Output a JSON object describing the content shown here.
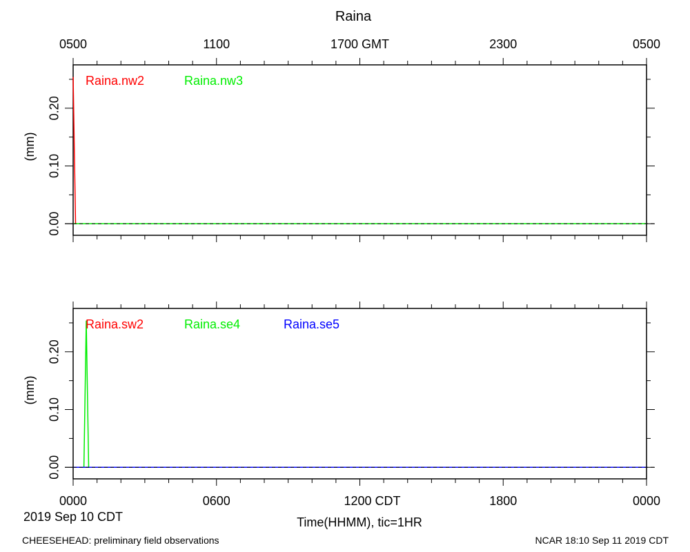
{
  "title": "Raina",
  "top_axis": {
    "tick_labels": [
      "0500",
      "1100",
      "1700 GMT",
      "2300",
      "0500"
    ]
  },
  "bottom_axis": {
    "tick_labels": [
      "0000",
      "0600",
      "1200 CDT",
      "1800",
      "0000"
    ],
    "date_label": "2019 Sep 10 CDT",
    "xlabel": "Time(HHMM), tic=1HR"
  },
  "footer": {
    "left": "CHEESEHEAD: preliminary field observations",
    "right": "NCAR 18:10 Sep 11 2019 CDT"
  },
  "colors": {
    "red": "#ff0000",
    "green": "#00ee00",
    "blue": "#0000ff",
    "zero_line": "#000000"
  },
  "chart_data": [
    {
      "type": "line",
      "ylabel": "(mm)",
      "ytick_labels": [
        "0.00",
        "0.10",
        "0.20"
      ],
      "yticks": [
        0.0,
        0.1,
        0.2
      ],
      "xlim_hours_cdt": [
        0,
        24
      ],
      "ylim": [
        -0.02,
        0.275
      ],
      "grid": false,
      "legend_placement": "top-left inside plot",
      "series": [
        {
          "name": "Raina.nw2",
          "color": "#ff0000",
          "x": [
            0.0,
            0.1,
            0.15,
            24.0
          ],
          "y": [
            0.254,
            0.0,
            0.0,
            0.0
          ]
        },
        {
          "name": "Raina.nw3",
          "color": "#00ee00",
          "x": [
            0.0,
            24.0
          ],
          "y": [
            0.0,
            0.0
          ]
        }
      ]
    },
    {
      "type": "line",
      "ylabel": "(mm)",
      "ytick_labels": [
        "0.00",
        "0.10",
        "0.20"
      ],
      "yticks": [
        0.0,
        0.1,
        0.2
      ],
      "xlim_hours_cdt": [
        0,
        24
      ],
      "ylim": [
        -0.02,
        0.275
      ],
      "grid": false,
      "legend_placement": "top-left inside plot",
      "series": [
        {
          "name": "Raina.sw2",
          "color": "#ff0000",
          "x": [
            0.0,
            24.0
          ],
          "y": [
            0.0,
            0.0
          ]
        },
        {
          "name": "Raina.se4",
          "color": "#00ee00",
          "x": [
            0.0,
            0.45,
            0.55,
            0.65,
            24.0
          ],
          "y": [
            0.0,
            0.0,
            0.254,
            0.0,
            0.0
          ]
        },
        {
          "name": "Raina.se5",
          "color": "#0000ff",
          "x": [
            0.0,
            24.0
          ],
          "y": [
            0.0,
            0.0
          ]
        }
      ]
    }
  ]
}
